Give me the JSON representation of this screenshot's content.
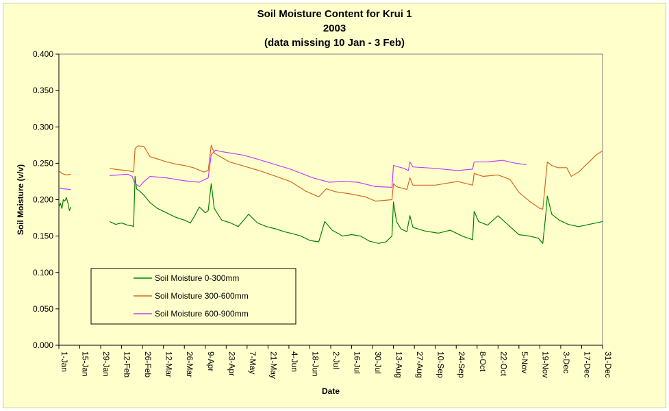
{
  "chart_data": {
    "type": "line",
    "title": [
      "Soil Moisture Content for Krui 1",
      "2003",
      "(data missing 10 Jan - 3 Feb)"
    ],
    "xlabel": "Date",
    "ylabel": "Soil Moisture (v/v)",
    "ylim": [
      0,
      0.4
    ],
    "ytick_labels": [
      "0.000",
      "0.050",
      "0.100",
      "0.150",
      "0.200",
      "0.250",
      "0.300",
      "0.350",
      "0.400"
    ],
    "xlim": [
      "2003-01-01",
      "2003-12-31"
    ],
    "xtick_labels": [
      "1-Jan",
      "15-Jan",
      "29-Jan",
      "12-Feb",
      "26-Feb",
      "12-Mar",
      "26-Mar",
      "9-Apr",
      "23-Apr",
      "7-May",
      "21-May",
      "4-Jun",
      "18-Jun",
      "2-Jul",
      "16-Jul",
      "30-Jul",
      "13-Aug",
      "27-Aug",
      "10-Sep",
      "24-Sep",
      "8-Oct",
      "22-Oct",
      "5-Nov",
      "19-Nov",
      "3-Dec",
      "17-Dec",
      "31-Dec"
    ],
    "legend": "left, inside plot area",
    "colors": {
      "plot_background": "#FFFFCC",
      "0-300": "#008000",
      "300-600": "#D2691E",
      "600-900": "#BF40FF"
    },
    "series": [
      {
        "name": "Soil Moisture 0-300mm",
        "points": [
          [
            "2003-01-01",
            0.19
          ],
          [
            "2003-01-02",
            0.195
          ],
          [
            "2003-01-03",
            0.188
          ],
          [
            "2003-01-04",
            0.2
          ],
          [
            "2003-01-05",
            0.198
          ],
          [
            "2003-01-06",
            0.203
          ],
          [
            "2003-01-07",
            0.196
          ],
          [
            "2003-01-08",
            0.185
          ],
          [
            "2003-01-09",
            0.19
          ],
          null,
          [
            "2003-02-04",
            0.17
          ],
          [
            "2003-02-08",
            0.166
          ],
          [
            "2003-02-12",
            0.168
          ],
          [
            "2003-02-16",
            0.165
          ],
          [
            "2003-02-19",
            0.164
          ],
          [
            "2003-02-20",
            0.163
          ],
          [
            "2003-02-21",
            0.232
          ],
          [
            "2003-02-22",
            0.215
          ],
          [
            "2003-02-24",
            0.212
          ],
          [
            "2003-02-27",
            0.206
          ],
          [
            "2003-03-03",
            0.196
          ],
          [
            "2003-03-08",
            0.188
          ],
          [
            "2003-03-14",
            0.182
          ],
          [
            "2003-03-20",
            0.176
          ],
          [
            "2003-03-26",
            0.172
          ],
          [
            "2003-03-30",
            0.168
          ],
          [
            "2003-04-02",
            0.178
          ],
          [
            "2003-04-05",
            0.19
          ],
          [
            "2003-04-09",
            0.182
          ],
          [
            "2003-04-11",
            0.185
          ],
          [
            "2003-04-13",
            0.222
          ],
          [
            "2003-04-15",
            0.188
          ],
          [
            "2003-04-20",
            0.172
          ],
          [
            "2003-04-26",
            0.168
          ],
          [
            "2003-05-01",
            0.163
          ],
          [
            "2003-05-06",
            0.175
          ],
          [
            "2003-05-08",
            0.18
          ],
          [
            "2003-05-14",
            0.168
          ],
          [
            "2003-05-20",
            0.163
          ],
          [
            "2003-05-26",
            0.16
          ],
          [
            "2003-06-01",
            0.156
          ],
          [
            "2003-06-07",
            0.153
          ],
          [
            "2003-06-12",
            0.15
          ],
          [
            "2003-06-18",
            0.144
          ],
          [
            "2003-06-24",
            0.142
          ],
          [
            "2003-06-28",
            0.17
          ],
          [
            "2003-07-03",
            0.158
          ],
          [
            "2003-07-10",
            0.15
          ],
          [
            "2003-07-16",
            0.152
          ],
          [
            "2003-07-22",
            0.15
          ],
          [
            "2003-07-28",
            0.143
          ],
          [
            "2003-08-03",
            0.14
          ],
          [
            "2003-08-08",
            0.142
          ],
          [
            "2003-08-12",
            0.15
          ],
          [
            "2003-08-13",
            0.197
          ],
          [
            "2003-08-15",
            0.17
          ],
          [
            "2003-08-18",
            0.16
          ],
          [
            "2003-08-22",
            0.156
          ],
          [
            "2003-08-24",
            0.178
          ],
          [
            "2003-08-26",
            0.162
          ],
          [
            "2003-09-03",
            0.157
          ],
          [
            "2003-09-12",
            0.154
          ],
          [
            "2003-09-20",
            0.158
          ],
          [
            "2003-09-28",
            0.15
          ],
          [
            "2003-10-05",
            0.145
          ],
          [
            "2003-10-06",
            0.184
          ],
          [
            "2003-10-09",
            0.17
          ],
          [
            "2003-10-15",
            0.165
          ],
          [
            "2003-10-22",
            0.178
          ],
          [
            "2003-10-30",
            0.163
          ],
          [
            "2003-11-05",
            0.152
          ],
          [
            "2003-11-12",
            0.15
          ],
          [
            "2003-11-18",
            0.147
          ],
          [
            "2003-11-21",
            0.14
          ],
          [
            "2003-11-23",
            0.18
          ],
          [
            "2003-11-24",
            0.205
          ],
          [
            "2003-11-27",
            0.18
          ],
          [
            "2003-12-02",
            0.172
          ],
          [
            "2003-12-08",
            0.166
          ],
          [
            "2003-12-15",
            0.163
          ],
          [
            "2003-12-22",
            0.166
          ],
          [
            "2003-12-31",
            0.17
          ]
        ]
      },
      {
        "name": "Soil Moisture 300-600mm",
        "points": [
          [
            "2003-01-01",
            0.24
          ],
          [
            "2003-01-03",
            0.236
          ],
          [
            "2003-01-06",
            0.234
          ],
          [
            "2003-01-09",
            0.235
          ],
          null,
          [
            "2003-02-04",
            0.243
          ],
          [
            "2003-02-10",
            0.241
          ],
          [
            "2003-02-16",
            0.24
          ],
          [
            "2003-02-20",
            0.238
          ],
          [
            "2003-02-21",
            0.27
          ],
          [
            "2003-02-23",
            0.274
          ],
          [
            "2003-02-27",
            0.273
          ],
          [
            "2003-03-03",
            0.259
          ],
          [
            "2003-03-08",
            0.256
          ],
          [
            "2003-03-14",
            0.252
          ],
          [
            "2003-03-20",
            0.249
          ],
          [
            "2003-03-26",
            0.247
          ],
          [
            "2003-04-01",
            0.244
          ],
          [
            "2003-04-08",
            0.238
          ],
          [
            "2003-04-11",
            0.24
          ],
          [
            "2003-04-13",
            0.275
          ],
          [
            "2003-04-15",
            0.264
          ],
          [
            "2003-04-25",
            0.252
          ],
          [
            "2003-05-05",
            0.246
          ],
          [
            "2003-05-15",
            0.24
          ],
          [
            "2003-05-25",
            0.233
          ],
          [
            "2003-06-05",
            0.225
          ],
          [
            "2003-06-15",
            0.212
          ],
          [
            "2003-06-24",
            0.204
          ],
          [
            "2003-06-29",
            0.215
          ],
          [
            "2003-07-05",
            0.211
          ],
          [
            "2003-07-15",
            0.208
          ],
          [
            "2003-07-25",
            0.204
          ],
          [
            "2003-08-01",
            0.198
          ],
          [
            "2003-08-12",
            0.2
          ],
          [
            "2003-08-13",
            0.222
          ],
          [
            "2003-08-15",
            0.218
          ],
          [
            "2003-08-22",
            0.214
          ],
          [
            "2003-08-24",
            0.23
          ],
          [
            "2003-08-26",
            0.22
          ],
          [
            "2003-09-10",
            0.22
          ],
          [
            "2003-09-25",
            0.225
          ],
          [
            "2003-10-05",
            0.22
          ],
          [
            "2003-10-06",
            0.236
          ],
          [
            "2003-10-12",
            0.232
          ],
          [
            "2003-10-22",
            0.234
          ],
          [
            "2003-10-30",
            0.228
          ],
          [
            "2003-11-05",
            0.21
          ],
          [
            "2003-11-12",
            0.198
          ],
          [
            "2003-11-19",
            0.188
          ],
          [
            "2003-11-21",
            0.187
          ],
          [
            "2003-11-23",
            0.23
          ],
          [
            "2003-11-24",
            0.252
          ],
          [
            "2003-11-27",
            0.247
          ],
          [
            "2003-12-01",
            0.244
          ],
          [
            "2003-12-07",
            0.244
          ],
          [
            "2003-12-10",
            0.232
          ],
          [
            "2003-12-15",
            0.238
          ],
          [
            "2003-12-22",
            0.252
          ],
          [
            "2003-12-27",
            0.262
          ],
          [
            "2003-12-31",
            0.267
          ]
        ]
      },
      {
        "name": "Soil Moisture 600-900mm",
        "points": [
          [
            "2003-01-01",
            0.216
          ],
          [
            "2003-01-04",
            0.215
          ],
          [
            "2003-01-09",
            0.214
          ],
          null,
          [
            "2003-02-04",
            0.233
          ],
          [
            "2003-02-10",
            0.234
          ],
          [
            "2003-02-16",
            0.235
          ],
          [
            "2003-02-19",
            0.232
          ],
          [
            "2003-02-21",
            0.222
          ],
          [
            "2003-02-24",
            0.218
          ],
          [
            "2003-02-27",
            0.225
          ],
          [
            "2003-03-03",
            0.232
          ],
          [
            "2003-03-14",
            0.23
          ],
          [
            "2003-03-26",
            0.226
          ],
          [
            "2003-04-05",
            0.224
          ],
          [
            "2003-04-11",
            0.23
          ],
          [
            "2003-04-13",
            0.262
          ],
          [
            "2003-04-16",
            0.268
          ],
          [
            "2003-04-20",
            0.266
          ],
          [
            "2003-05-05",
            0.261
          ],
          [
            "2003-05-20",
            0.252
          ],
          [
            "2003-06-05",
            0.242
          ],
          [
            "2003-06-20",
            0.23
          ],
          [
            "2003-07-01",
            0.224
          ],
          [
            "2003-07-10",
            0.225
          ],
          [
            "2003-07-20",
            0.224
          ],
          [
            "2003-08-01",
            0.218
          ],
          [
            "2003-08-12",
            0.217
          ],
          [
            "2003-08-13",
            0.247
          ],
          [
            "2003-08-20",
            0.243
          ],
          [
            "2003-08-23",
            0.24
          ],
          [
            "2003-08-24",
            0.252
          ],
          [
            "2003-08-26",
            0.245
          ],
          [
            "2003-09-10",
            0.243
          ],
          [
            "2003-09-25",
            0.24
          ],
          [
            "2003-10-05",
            0.242
          ],
          [
            "2003-10-06",
            0.252
          ],
          [
            "2003-10-15",
            0.252
          ],
          [
            "2003-10-25",
            0.254
          ],
          [
            "2003-11-03",
            0.25
          ],
          [
            "2003-11-10",
            0.248
          ]
        ]
      }
    ]
  }
}
